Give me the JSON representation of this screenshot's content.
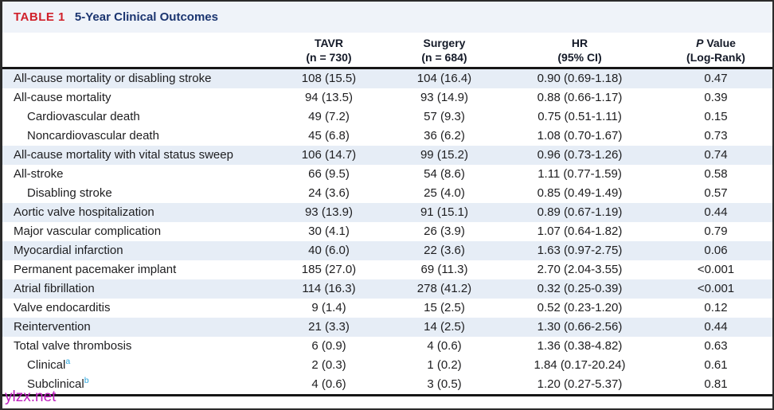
{
  "table": {
    "label": "TABLE 1",
    "title": "5-Year Clinical Outcomes",
    "columns": [
      {
        "italic": "",
        "line1": "TAVR",
        "line2": "(n = 730)"
      },
      {
        "italic": "",
        "line1": "Surgery",
        "line2": "(n = 684)"
      },
      {
        "italic": "",
        "line1": "HR",
        "line2": "(95% CI)"
      },
      {
        "italic": "P",
        "line1": " Value",
        "line2": "(Log-Rank)"
      }
    ],
    "rows": [
      {
        "endpoint": "All-cause mortality or disabling stroke",
        "indent": false,
        "shaded": true,
        "sup": "",
        "tavr": "108 (15.5)",
        "surgery": "104 (16.4)",
        "hr": "0.90 (0.69-1.18)",
        "p": "0.47"
      },
      {
        "endpoint": "All-cause mortality",
        "indent": false,
        "shaded": false,
        "sup": "",
        "tavr": "94 (13.5)",
        "surgery": "93 (14.9)",
        "hr": "0.88 (0.66-1.17)",
        "p": "0.39"
      },
      {
        "endpoint": "Cardiovascular death",
        "indent": true,
        "shaded": false,
        "sup": "",
        "tavr": "49 (7.2)",
        "surgery": "57 (9.3)",
        "hr": "0.75 (0.51-1.11)",
        "p": "0.15"
      },
      {
        "endpoint": "Noncardiovascular death",
        "indent": true,
        "shaded": false,
        "sup": "",
        "tavr": "45 (6.8)",
        "surgery": "36 (6.2)",
        "hr": "1.08 (0.70-1.67)",
        "p": "0.73"
      },
      {
        "endpoint": "All-cause mortality with vital status sweep",
        "indent": false,
        "shaded": true,
        "sup": "",
        "tavr": "106 (14.7)",
        "surgery": "99 (15.2)",
        "hr": "0.96 (0.73-1.26)",
        "p": "0.74"
      },
      {
        "endpoint": "All-stroke",
        "indent": false,
        "shaded": false,
        "sup": "",
        "tavr": "66 (9.5)",
        "surgery": "54 (8.6)",
        "hr": "1.11 (0.77-1.59)",
        "p": "0.58"
      },
      {
        "endpoint": "Disabling stroke",
        "indent": true,
        "shaded": false,
        "sup": "",
        "tavr": "24 (3.6)",
        "surgery": "25 (4.0)",
        "hr": "0.85 (0.49-1.49)",
        "p": "0.57"
      },
      {
        "endpoint": "Aortic valve hospitalization",
        "indent": false,
        "shaded": true,
        "sup": "",
        "tavr": "93 (13.9)",
        "surgery": "91 (15.1)",
        "hr": "0.89 (0.67-1.19)",
        "p": "0.44"
      },
      {
        "endpoint": "Major vascular complication",
        "indent": false,
        "shaded": false,
        "sup": "",
        "tavr": "30 (4.1)",
        "surgery": "26 (3.9)",
        "hr": "1.07 (0.64-1.82)",
        "p": "0.79"
      },
      {
        "endpoint": "Myocardial infarction",
        "indent": false,
        "shaded": true,
        "sup": "",
        "tavr": "40 (6.0)",
        "surgery": "22 (3.6)",
        "hr": "1.63 (0.97-2.75)",
        "p": "0.06"
      },
      {
        "endpoint": "Permanent pacemaker implant",
        "indent": false,
        "shaded": false,
        "sup": "",
        "tavr": "185 (27.0)",
        "surgery": "69 (11.3)",
        "hr": "2.70 (2.04-3.55)",
        "p": "<0.001"
      },
      {
        "endpoint": "Atrial fibrillation",
        "indent": false,
        "shaded": true,
        "sup": "",
        "tavr": "114 (16.3)",
        "surgery": "278 (41.2)",
        "hr": "0.32 (0.25-0.39)",
        "p": "<0.001"
      },
      {
        "endpoint": "Valve endocarditis",
        "indent": false,
        "shaded": false,
        "sup": "",
        "tavr": "9 (1.4)",
        "surgery": "15 (2.5)",
        "hr": "0.52 (0.23-1.20)",
        "p": "0.12"
      },
      {
        "endpoint": "Reintervention",
        "indent": false,
        "shaded": true,
        "sup": "",
        "tavr": "21 (3.3)",
        "surgery": "14 (2.5)",
        "hr": "1.30 (0.66-2.56)",
        "p": "0.44"
      },
      {
        "endpoint": "Total valve thrombosis",
        "indent": false,
        "shaded": false,
        "sup": "",
        "tavr": "6 (0.9)",
        "surgery": "4 (0.6)",
        "hr": "1.36 (0.38-4.82)",
        "p": "0.63"
      },
      {
        "endpoint": "Clinical",
        "indent": true,
        "shaded": false,
        "sup": "a",
        "tavr": "2 (0.3)",
        "surgery": "1 (0.2)",
        "hr": "1.84 (0.17-20.24)",
        "p": "0.61"
      },
      {
        "endpoint": "Subclinical",
        "indent": true,
        "shaded": false,
        "sup": "b",
        "tavr": "4 (0.6)",
        "surgery": "3 (0.5)",
        "hr": "1.20 (0.27-5.37)",
        "p": "0.81"
      }
    ]
  },
  "watermark": "ylzx.net",
  "colors": {
    "table_label_red": "#d0202a",
    "title_navy": "#1b3570",
    "shaded_row_blue": "#e6edf6",
    "title_band_bg": "#eff3f9",
    "footnote_blue": "#2aa6de",
    "watermark_magenta": "#bf1fbf",
    "rule_black": "#161616"
  }
}
